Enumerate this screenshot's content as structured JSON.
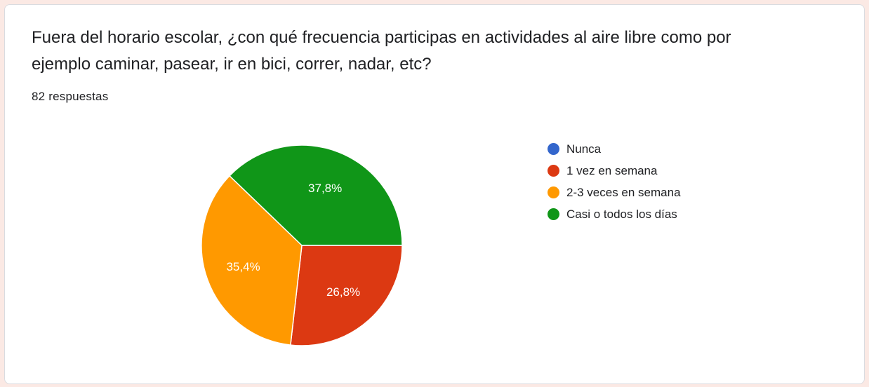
{
  "question": {
    "title": "Fuera del horario escolar, ¿con qué frecuencia participas en actividades al aire libre como por ejemplo caminar, pasear, ir en bici, correr, nadar, etc?",
    "response_count": "82 respuestas"
  },
  "chart_data": {
    "type": "pie",
    "title": "",
    "legend_position": "right",
    "slices": [
      {
        "label": "Nunca",
        "value": 0,
        "display": "",
        "color": "#3366cc"
      },
      {
        "label": "1 vez en semana",
        "value": 26.8,
        "display": "26,8%",
        "color": "#dc3912"
      },
      {
        "label": "2-3 veces en semana",
        "value": 35.4,
        "display": "35,4%",
        "color": "#ff9900"
      },
      {
        "label": "Casi o todos los días",
        "value": 37.8,
        "display": "37,8%",
        "color": "#109618"
      }
    ]
  }
}
